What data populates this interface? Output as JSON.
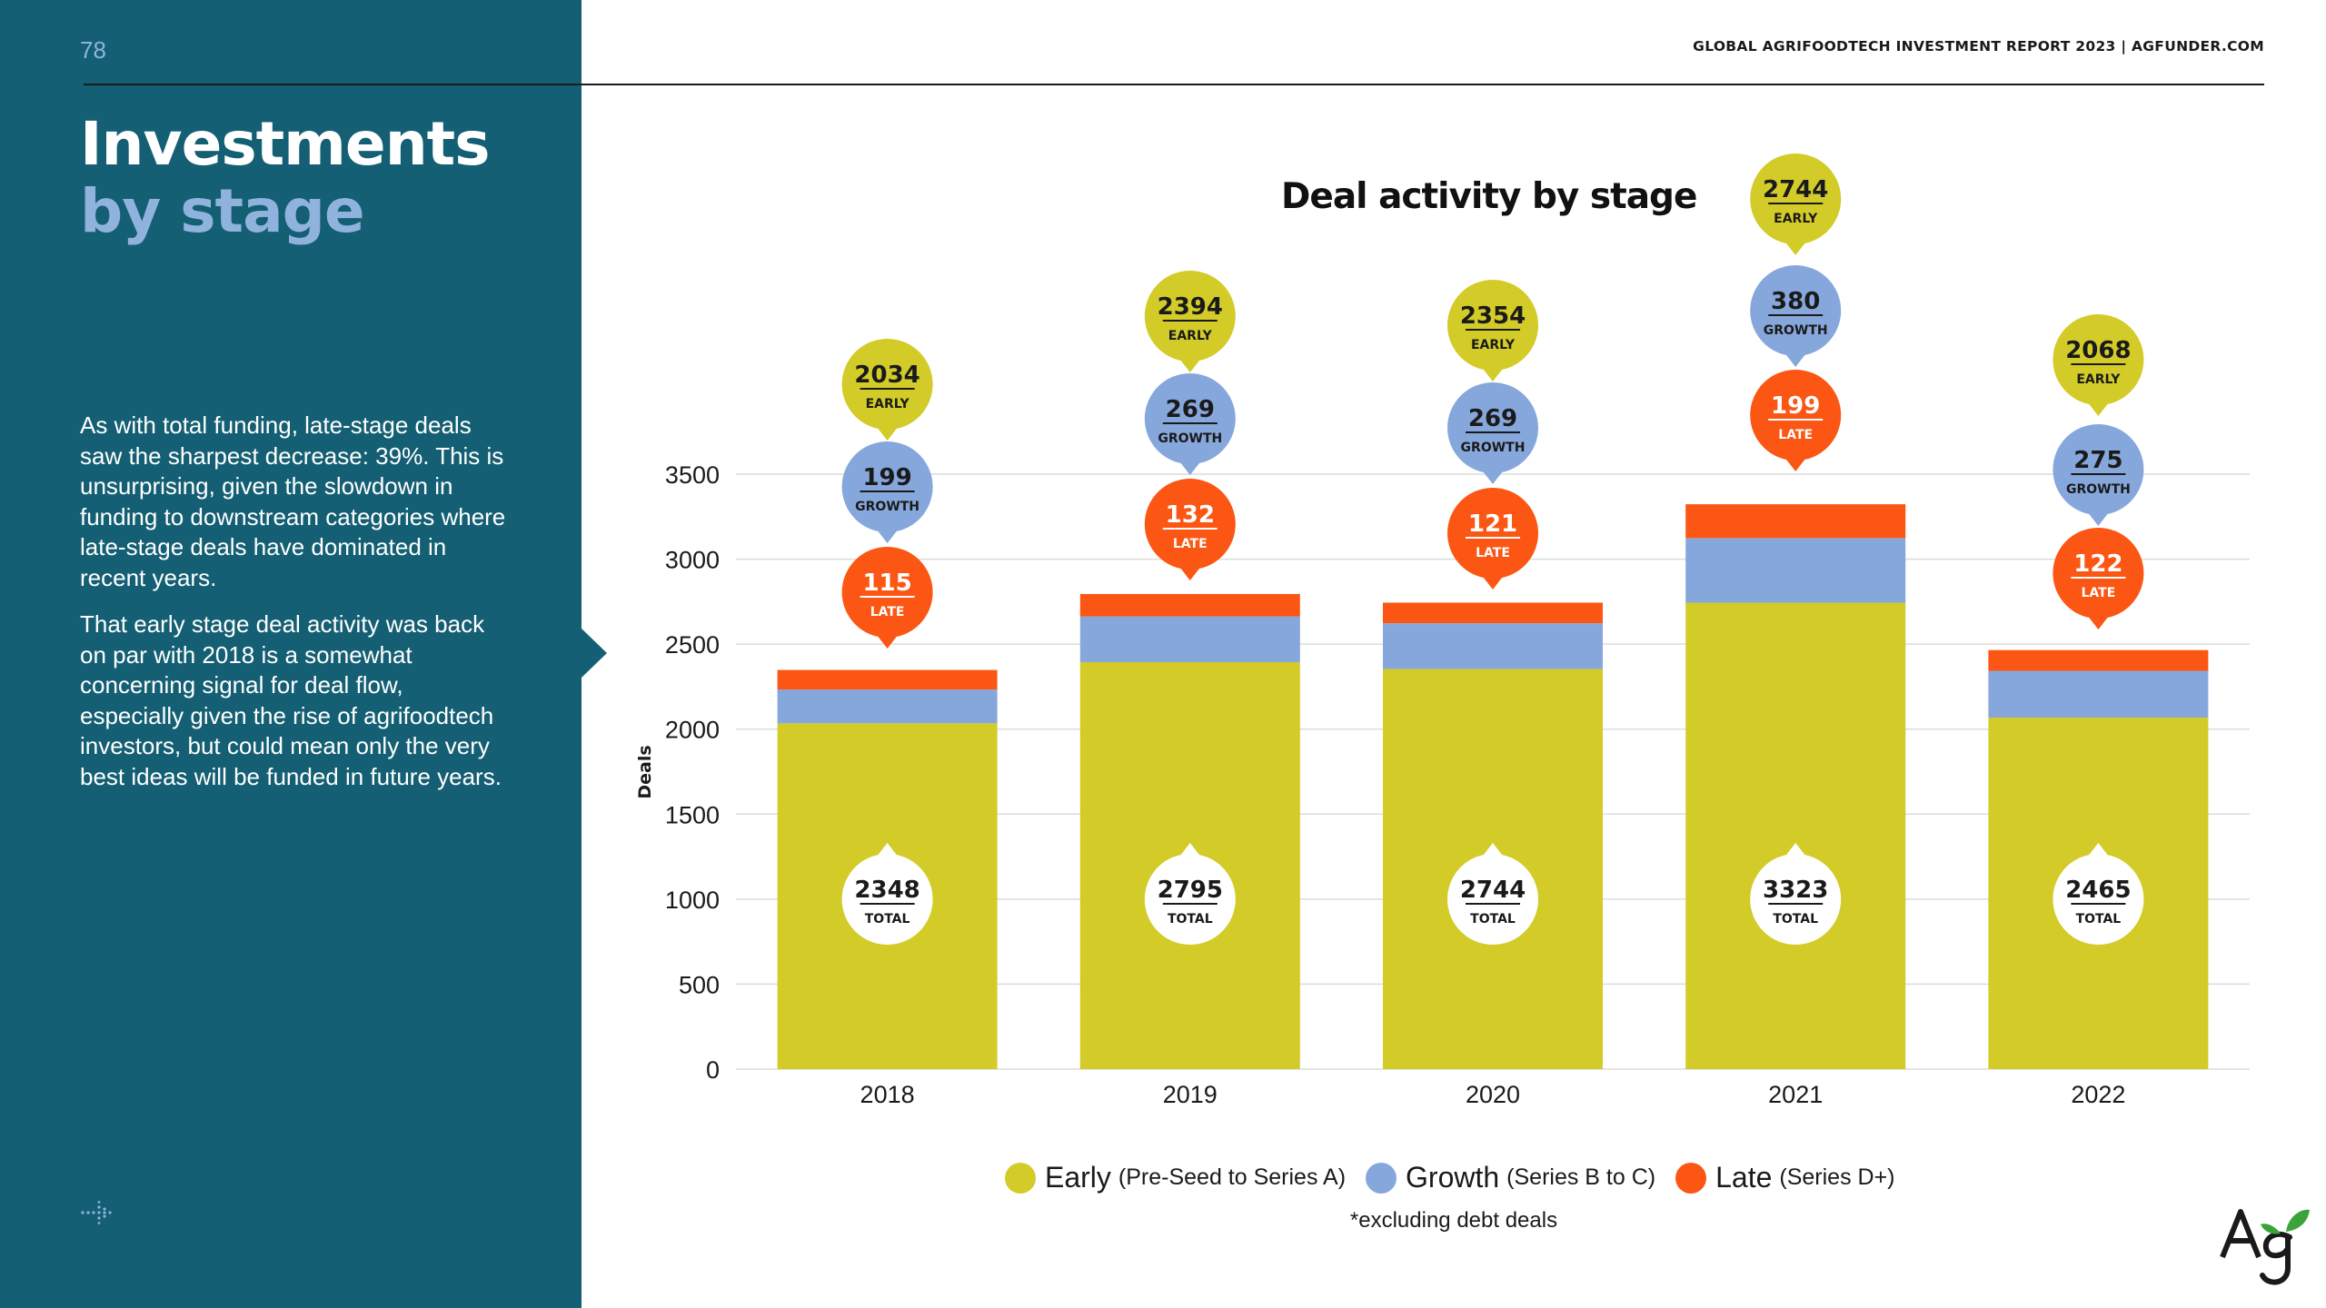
{
  "page": {
    "number": "78",
    "header": "GLOBAL AGRIFOODTECH INVESTMENT REPORT 2023 | AGFUNDER.COM"
  },
  "sidebar": {
    "title_line1": "Investments",
    "title_line2": "by stage",
    "paragraphs": [
      "As with total funding, late-stage deals saw the sharpest decrease: 39%. This is unsurprising, given the slowdown in funding to downstream categories where late-stage deals have dominated in recent years.",
      "That early stage deal activity was back on par with 2018 is a somewhat concerning signal for deal flow, especially given the rise of agrifoodtech investors, but could mean only the very best ideas will be funded in future years."
    ]
  },
  "colors": {
    "sidebar": "#145f73",
    "title_accent": "#8fb3dc",
    "early": "#d3cb28",
    "growth": "#86a7dc",
    "late": "#fb5613"
  },
  "legend": {
    "items": [
      {
        "name": "Early",
        "detail": "(Pre-Seed to Series A)",
        "color": "#d3cb28"
      },
      {
        "name": "Growth",
        "detail": "(Series B to C)",
        "color": "#86a7dc"
      },
      {
        "name": "Late",
        "detail": "(Series D+)",
        "color": "#fb5613"
      }
    ],
    "footnote": "*excluding debt deals"
  },
  "icons": {
    "bottom_left": "dots-arrow-icon",
    "logo": "agfunder-logo"
  },
  "chart_data": {
    "type": "bar",
    "stacked": true,
    "title": "Deal activity by stage",
    "ylabel": "Deals",
    "xlabel": "",
    "ylim": [
      0,
      3500
    ],
    "yticks": [
      0,
      500,
      1000,
      1500,
      2000,
      2500,
      3000,
      3500
    ],
    "grid": true,
    "legend_position": "bottom",
    "categories": [
      "2018",
      "2019",
      "2020",
      "2021",
      "2022"
    ],
    "series": [
      {
        "name": "Early",
        "label": "EARLY",
        "color": "#d3cb28",
        "values": [
          2034,
          2394,
          2354,
          2744,
          2068
        ]
      },
      {
        "name": "Growth",
        "label": "GROWTH",
        "color": "#86a7dc",
        "values": [
          199,
          269,
          269,
          380,
          275
        ]
      },
      {
        "name": "Late",
        "label": "LATE",
        "color": "#fb5613",
        "values": [
          115,
          132,
          121,
          199,
          122
        ]
      }
    ],
    "totals": [
      2348,
      2795,
      2744,
      3323,
      2465
    ],
    "total_label": "TOTAL"
  }
}
